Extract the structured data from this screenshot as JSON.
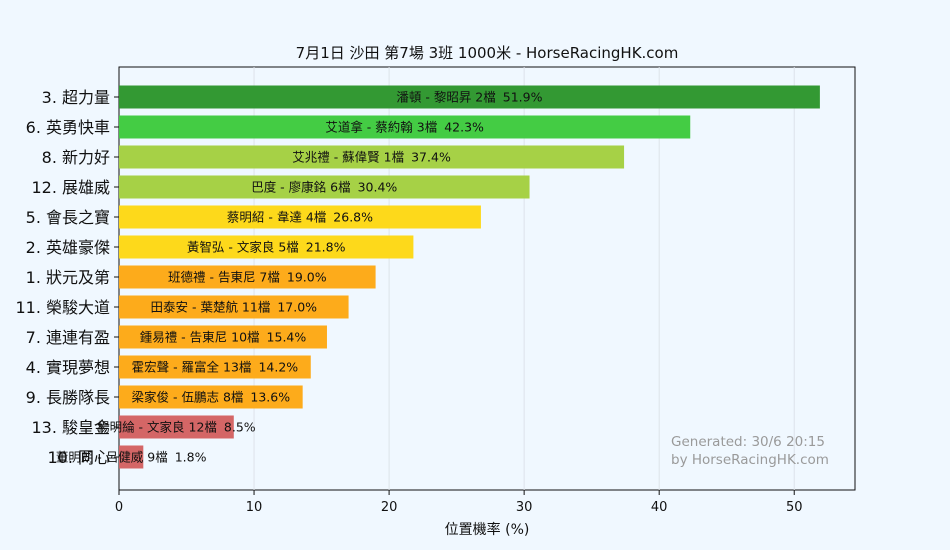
{
  "chart_data": {
    "type": "bar",
    "orientation": "horizontal",
    "title": "7月1日  沙田  第7場  3班  1000米 - HorseRacingHK.com",
    "xlabel": "位置機率 (%)",
    "ylabel": "",
    "xlim": [
      0,
      54.5
    ],
    "xticks": [
      "0",
      "10",
      "20",
      "30",
      "40",
      "50"
    ],
    "grid": "vertical",
    "bars": [
      {
        "horse": "3. 超力量",
        "label": "潘頓 - 黎昭昇 2檔",
        "pct": "51.9%",
        "value": 51.9,
        "color": "#339933"
      },
      {
        "horse": "6. 英勇快車",
        "label": "艾道拿 - 蔡約翰 3檔",
        "pct": "42.3%",
        "value": 42.3,
        "color": "#44cc44"
      },
      {
        "horse": "8. 新力好",
        "label": "艾兆禮 - 蘇偉賢 1檔",
        "pct": "37.4%",
        "value": 37.4,
        "color": "#a6d146"
      },
      {
        "horse": "12. 展雄威",
        "label": "巴度 - 廖康銘 6檔",
        "pct": "30.4%",
        "value": 30.4,
        "color": "#a6d146"
      },
      {
        "horse": "5. 會長之寶",
        "label": "蔡明紹 - 韋達 4檔",
        "pct": "26.8%",
        "value": 26.8,
        "color": "#fdd91b"
      },
      {
        "horse": "2. 英雄豪傑",
        "label": "黃智弘 - 文家良 5檔",
        "pct": "21.8%",
        "value": 21.8,
        "color": "#fdd91b"
      },
      {
        "horse": "1. 狀元及第",
        "label": "班德禮 - 告東尼 7檔",
        "pct": "19.0%",
        "value": 19.0,
        "color": "#fdab1b"
      },
      {
        "horse": "11. 榮駿大道",
        "label": "田泰安 - 葉楚航 11檔",
        "pct": "17.0%",
        "value": 17.0,
        "color": "#fdab1b"
      },
      {
        "horse": "7. 連連有盈",
        "label": "鍾易禮 - 告東尼 10檔",
        "pct": "15.4%",
        "value": 15.4,
        "color": "#fdab1b"
      },
      {
        "horse": "4. 實現夢想",
        "label": "霍宏聲 - 羅富全 13檔",
        "pct": "14.2%",
        "value": 14.2,
        "color": "#fdab1b"
      },
      {
        "horse": "9. 長勝隊長",
        "label": "梁家俊 - 伍鵬志 8檔",
        "pct": "13.6%",
        "value": 13.6,
        "color": "#fdab1b"
      },
      {
        "horse": "13. 駿皇金",
        "label": "楊明綸 - 文家良 12檔",
        "pct": "8.5%",
        "value": 8.5,
        "color": "#d46666"
      },
      {
        "horse": "10. 同心",
        "label": "董明朗 - 呂健威 9檔",
        "pct": "1.8%",
        "value": 1.8,
        "color": "#d46666"
      }
    ],
    "watermark": [
      "Generated: 30/6 20:15",
      "by HorseRacingHK.com"
    ]
  }
}
